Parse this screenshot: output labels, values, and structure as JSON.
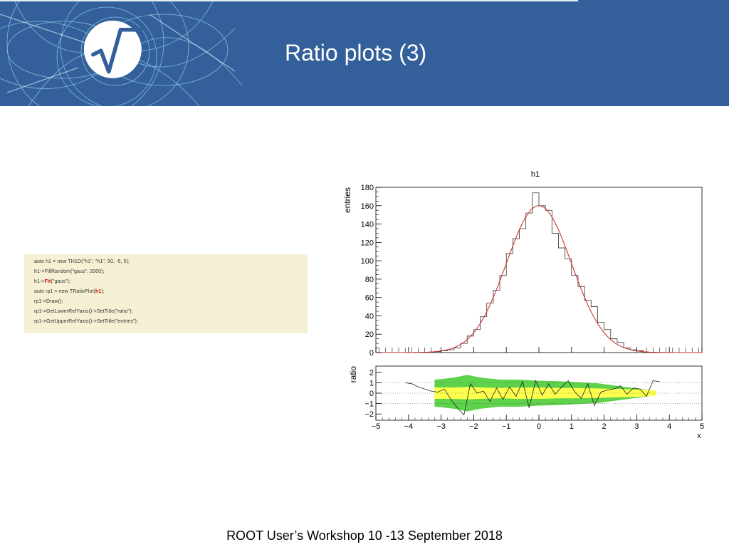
{
  "header": {
    "title": "Ratio plots (3)",
    "background_color": "#33609a",
    "logo_icon": "root-sqrt-logo-icon"
  },
  "code": {
    "lines": [
      "auto h1 = new TH1D(\"h1\", \"h1\", 50, -5, 5);",
      "h1->FillRandom(\"gaus\", 2000);",
      "h1->Fit(\"gaus\");",
      "auto rp1 = new TRatioPlot(h1);",
      "rp1->Draw();",
      "rp1->GetLowerRefYaxis()->SetTitle(\"ratio\");",
      "rp1->GetUpperRefYaxis()->SetTitle(\"entries\");"
    ],
    "highlighted_tokens": [
      "Fit",
      "h1"
    ],
    "background_color": "#f6f0d4"
  },
  "chart_data": [
    {
      "type": "bar",
      "title": "h1",
      "xlabel": "",
      "ylabel": "entries",
      "xlim": [
        -5,
        5
      ],
      "ylim": [
        0,
        180
      ],
      "yticks": [
        0,
        20,
        40,
        60,
        80,
        100,
        120,
        140,
        160,
        180
      ],
      "bin_edges": [
        -5,
        -4.8,
        -4.6,
        -4.4,
        -4.2,
        -4,
        -3.8,
        -3.6,
        -3.4,
        -3.2,
        -3,
        -2.8,
        -2.6,
        -2.4,
        -2.2,
        -2,
        -1.8,
        -1.6,
        -1.4,
        -1.2,
        -1,
        -0.8,
        -0.6,
        -0.4,
        -0.2,
        0,
        0.2,
        0.4,
        0.6,
        0.8,
        1,
        1.2,
        1.4,
        1.6,
        1.8,
        2,
        2.2,
        2.4,
        2.6,
        2.8,
        3,
        3.2,
        3.4,
        3.6,
        3.8,
        4,
        4.2,
        4.4,
        4.6,
        4.8,
        5
      ],
      "values": [
        0,
        0,
        0,
        0,
        0,
        0,
        0,
        0,
        0,
        1,
        2,
        3,
        5,
        10,
        18,
        25,
        39,
        54,
        68,
        84,
        108,
        124,
        135,
        152,
        174,
        160,
        155,
        130,
        114,
        102,
        84,
        72,
        57,
        50,
        33,
        25,
        15,
        11,
        5,
        3,
        2,
        0,
        0,
        0,
        0,
        0,
        0,
        0,
        0,
        0
      ],
      "fit": {
        "function": "gaus",
        "constant": 160,
        "mean": 0,
        "sigma": 1.0,
        "color": "#cc3333"
      },
      "grid": false
    },
    {
      "type": "line",
      "title": "",
      "xlabel": "x",
      "ylabel": "ratio",
      "xlim": [
        -5,
        5
      ],
      "ylim": [
        -2.6,
        2.6
      ],
      "yticks": [
        -2,
        -1,
        0,
        1,
        2
      ],
      "xticks": [
        -5,
        -4,
        -3,
        -2,
        -1,
        0,
        1,
        2,
        3,
        4,
        5
      ],
      "reference_lines": [
        -1,
        0,
        1
      ],
      "x": [
        -4.1,
        -3.9,
        -3.7,
        -3.5,
        -3.3,
        -3.1,
        -2.9,
        -2.7,
        -2.5,
        -2.3,
        -2.1,
        -1.9,
        -1.7,
        -1.5,
        -1.3,
        -1.1,
        -0.9,
        -0.7,
        -0.5,
        -0.3,
        -0.1,
        0.1,
        0.3,
        0.5,
        0.7,
        0.9,
        1.1,
        1.3,
        1.5,
        1.7,
        1.9,
        2.1,
        2.3,
        2.5,
        2.7,
        2.9,
        3.1,
        3.3,
        3.5,
        3.7
      ],
      "values": [
        1.0,
        0.9,
        0.6,
        0.4,
        0.2,
        0.1,
        0.4,
        -0.6,
        -1.4,
        -2.1,
        0.9,
        0.0,
        0.2,
        -0.8,
        0.5,
        -0.6,
        0.6,
        -0.3,
        1.1,
        -1.4,
        1.2,
        -0.2,
        0.9,
        -0.1,
        0.6,
        1.2,
        0.1,
        -0.5,
        0.9,
        -1.2,
        0.1,
        0.3,
        0.4,
        0.7,
        -0.1,
        0.5,
        0.4,
        -0.3,
        1.2,
        1.1
      ],
      "band_1sigma_color": "#ffff4d",
      "band_2sigma_color": "#5dd24a",
      "band_1sigma_half_width": [
        0.55,
        0.55,
        0.55,
        0.6,
        0.55,
        0.5,
        0.55,
        0.55,
        0.5,
        0.5,
        0.45,
        0.4,
        0.35,
        0.25
      ],
      "band_2sigma_half_width": [
        1.3,
        1.35,
        1.5,
        1.75,
        1.5,
        1.3,
        1.3,
        1.2,
        1.15,
        1.05,
        0.95,
        0.7,
        0.45,
        0.2
      ],
      "band_x": [
        -3.2,
        -3.0,
        -2.6,
        -2.2,
        -1.8,
        -1.2,
        -0.6,
        0.0,
        0.6,
        1.2,
        1.8,
        2.4,
        3.0,
        3.6
      ]
    }
  ],
  "footer": {
    "text": "ROOT User’s Workshop  10 -13 September 2018"
  }
}
